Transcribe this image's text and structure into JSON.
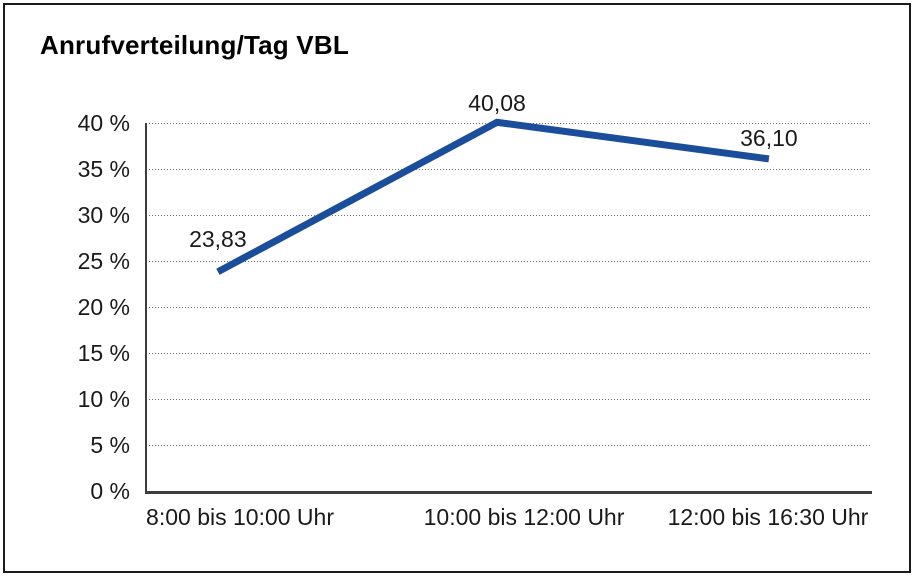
{
  "frame": {
    "border_color": "#1a1a1a",
    "background_color": "#ffffff"
  },
  "chart_data": {
    "type": "line",
    "title": "Anrufverteilung/Tag VBL",
    "categories": [
      "8:00 bis 10:00 Uhr",
      "10:00 bis 12:00 Uhr",
      "12:00 bis 16:30 Uhr"
    ],
    "values": [
      23.83,
      40.08,
      36.1
    ],
    "point_labels": [
      "23,83",
      "40,08",
      "36,10"
    ],
    "xlabel": "",
    "ylabel": "",
    "ylim": [
      0,
      40
    ],
    "ytick_step": 5,
    "yticks": [
      {
        "value": 0,
        "label": "0 %"
      },
      {
        "value": 5,
        "label": "5 %"
      },
      {
        "value": 10,
        "label": "10 %"
      },
      {
        "value": 15,
        "label": "15 %"
      },
      {
        "value": 20,
        "label": "20 %"
      },
      {
        "value": 25,
        "label": "25 %"
      },
      {
        "value": 30,
        "label": "30 %"
      },
      {
        "value": 35,
        "label": "35 %"
      },
      {
        "value": 40,
        "label": "40 %"
      }
    ],
    "grid": "dotted-horizontal",
    "legend": "none",
    "line_color": "#1a4e9b",
    "line_width": 7,
    "axis_color": "#3d3d3d",
    "text_color": "#1a1a1a"
  }
}
